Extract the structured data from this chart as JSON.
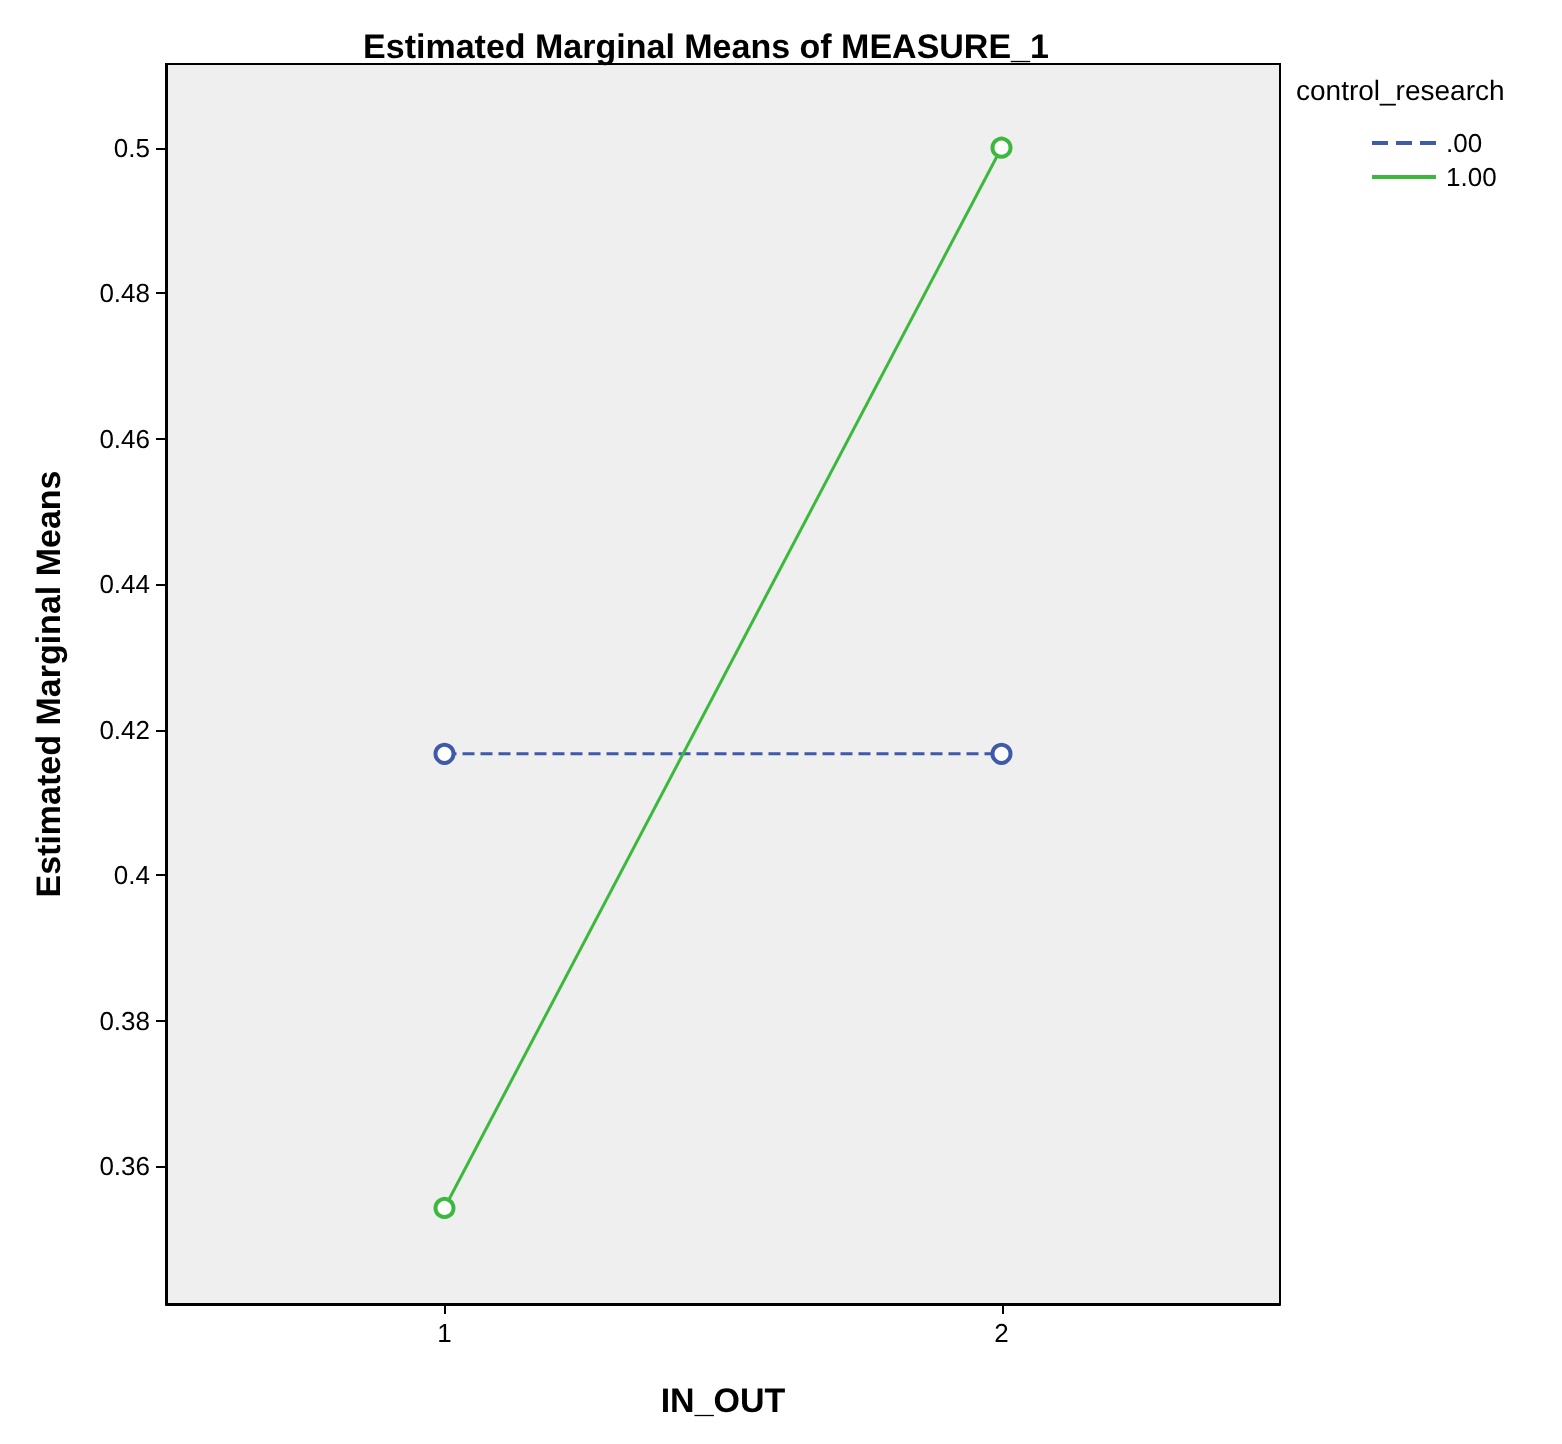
{
  "chart_data": {
    "type": "line",
    "title": "Estimated Marginal Means of MEASURE_1",
    "xlabel": "IN_OUT",
    "ylabel": "Estimated Marginal Means",
    "legend_title": "control_research",
    "categories": [
      "1",
      "2"
    ],
    "series": [
      {
        "name": ".00",
        "color": "#3e5aa8",
        "values": [
          0.4167,
          0.4167
        ],
        "line_style": "dashed"
      },
      {
        "name": "1.00",
        "color": "#3cb83c",
        "values": [
          0.3543,
          0.5
        ],
        "line_style": "solid"
      }
    ],
    "ylim": [
      0.3411,
      0.5115
    ],
    "yticks": [
      0.36,
      0.38,
      0.4,
      0.42,
      0.44,
      0.46,
      0.48,
      0.5
    ],
    "marker": "circle",
    "legend": "top right",
    "grid": false
  }
}
